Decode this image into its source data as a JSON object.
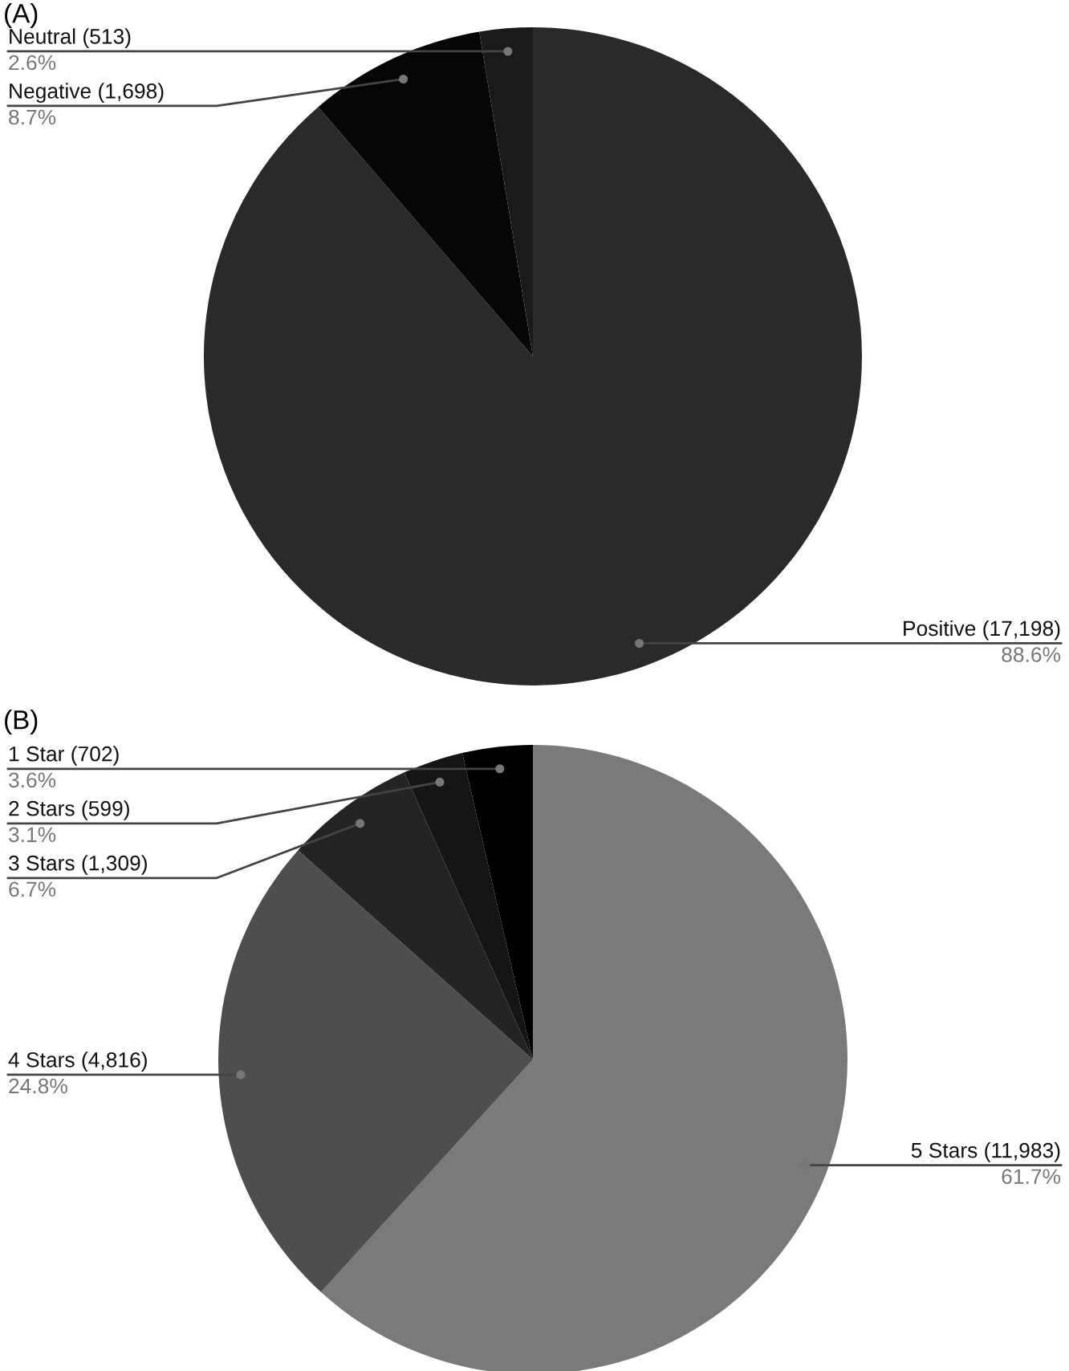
{
  "chart_data": [
    {
      "type": "pie",
      "title": "(A)",
      "categories": [
        "Positive (17,198)",
        "Negative (1,698)",
        "Neutral (513)"
      ],
      "values": [
        88.6,
        8.7,
        2.6
      ],
      "colors": [
        "#2a2a2a",
        "#060606",
        "#1a1a1a"
      ],
      "value_labels": [
        "88.6%",
        "8.7%",
        "2.6%"
      ]
    },
    {
      "type": "pie",
      "title": "(B)",
      "categories": [
        "5 Stars (11,983)",
        "4 Stars (4,816)",
        "3 Stars (1,309)",
        "2 Stars (599)",
        "1 Star (702)"
      ],
      "values": [
        61.7,
        24.8,
        6.7,
        3.1,
        3.6
      ],
      "colors": [
        "#7a7a7a",
        "#4e4e4e",
        "#242424",
        "#151515",
        "#000000"
      ],
      "value_labels": [
        "61.7%",
        "24.8%",
        "6.7%",
        "3.1%",
        "3.6%"
      ]
    }
  ]
}
